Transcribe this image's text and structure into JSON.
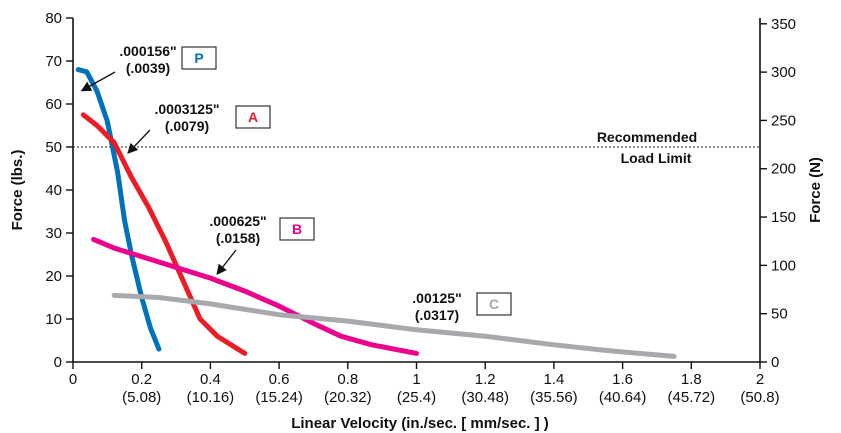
{
  "chart_data": {
    "type": "line",
    "xlabel": "Linear Velocity  (in./sec. [ mm/sec. ] )",
    "ylabel_left": "Force (lbs.)",
    "ylabel_right": "Force (N)",
    "xlim": [
      0,
      2
    ],
    "ylim_left": [
      0,
      80
    ],
    "ylim_right": [
      0,
      356
    ],
    "grid": false,
    "x_ticks": [
      {
        "value": 0,
        "label": "0",
        "sub": ""
      },
      {
        "value": 0.2,
        "label": "0.2",
        "sub": "(5.08)"
      },
      {
        "value": 0.4,
        "label": "0.4",
        "sub": "(10.16)"
      },
      {
        "value": 0.6,
        "label": "0.6",
        "sub": "(15.24)"
      },
      {
        "value": 0.8,
        "label": "0.8",
        "sub": "(20.32)"
      },
      {
        "value": 1.0,
        "label": "1",
        "sub": "(25.4)"
      },
      {
        "value": 1.2,
        "label": "1.2",
        "sub": "(30.48)"
      },
      {
        "value": 1.4,
        "label": "1.4",
        "sub": "(35.56)"
      },
      {
        "value": 1.6,
        "label": "1.6",
        "sub": "(40.64)"
      },
      {
        "value": 1.8,
        "label": "1.8",
        "sub": "(45.72)"
      },
      {
        "value": 2.0,
        "label": "2",
        "sub": "(50.8)"
      }
    ],
    "y_ticks_left": [
      0,
      10,
      20,
      30,
      40,
      50,
      60,
      70,
      80
    ],
    "y_ticks_right": [
      0,
      50,
      100,
      150,
      200,
      250,
      300,
      350
    ],
    "reference_line": {
      "y": 50,
      "label_line1": "Recommended",
      "label_line2": "Load Limit"
    },
    "series": [
      {
        "name": "P",
        "color": "#0072bc",
        "lead": ".000156\"",
        "lead_mm": "(.0039)",
        "points": [
          [
            0.015,
            68
          ],
          [
            0.04,
            67.5
          ],
          [
            0.07,
            63
          ],
          [
            0.1,
            56
          ],
          [
            0.13,
            44
          ],
          [
            0.15,
            33
          ],
          [
            0.17,
            25
          ],
          [
            0.2,
            15
          ],
          [
            0.225,
            8
          ],
          [
            0.25,
            3
          ]
        ]
      },
      {
        "name": "A",
        "color": "#ed1c24",
        "lead": ".0003125\"",
        "lead_mm": "(.0079)",
        "points": [
          [
            0.03,
            57.5
          ],
          [
            0.07,
            55
          ],
          [
            0.12,
            51
          ],
          [
            0.17,
            43
          ],
          [
            0.22,
            36
          ],
          [
            0.27,
            28
          ],
          [
            0.32,
            19
          ],
          [
            0.37,
            10
          ],
          [
            0.42,
            6
          ],
          [
            0.5,
            2
          ]
        ]
      },
      {
        "name": "B",
        "color": "#ec008c",
        "lead": ".000625\"",
        "lead_mm": "(.0158)",
        "points": [
          [
            0.06,
            28.5
          ],
          [
            0.12,
            26.5
          ],
          [
            0.2,
            24.5
          ],
          [
            0.3,
            22
          ],
          [
            0.4,
            19.5
          ],
          [
            0.5,
            16.5
          ],
          [
            0.6,
            13
          ],
          [
            0.7,
            9
          ],
          [
            0.78,
            6
          ],
          [
            0.87,
            4
          ],
          [
            1.0,
            2
          ]
        ]
      },
      {
        "name": "C",
        "color": "#a7a9ac",
        "lead": ".00125\"",
        "lead_mm": "(.0317)",
        "points": [
          [
            0.12,
            15.5
          ],
          [
            0.25,
            15
          ],
          [
            0.4,
            13.5
          ],
          [
            0.6,
            11
          ],
          [
            0.8,
            9.5
          ],
          [
            1.0,
            7.5
          ],
          [
            1.2,
            6
          ],
          [
            1.4,
            4
          ],
          [
            1.55,
            2.7
          ],
          [
            1.75,
            1.3
          ]
        ]
      }
    ]
  }
}
